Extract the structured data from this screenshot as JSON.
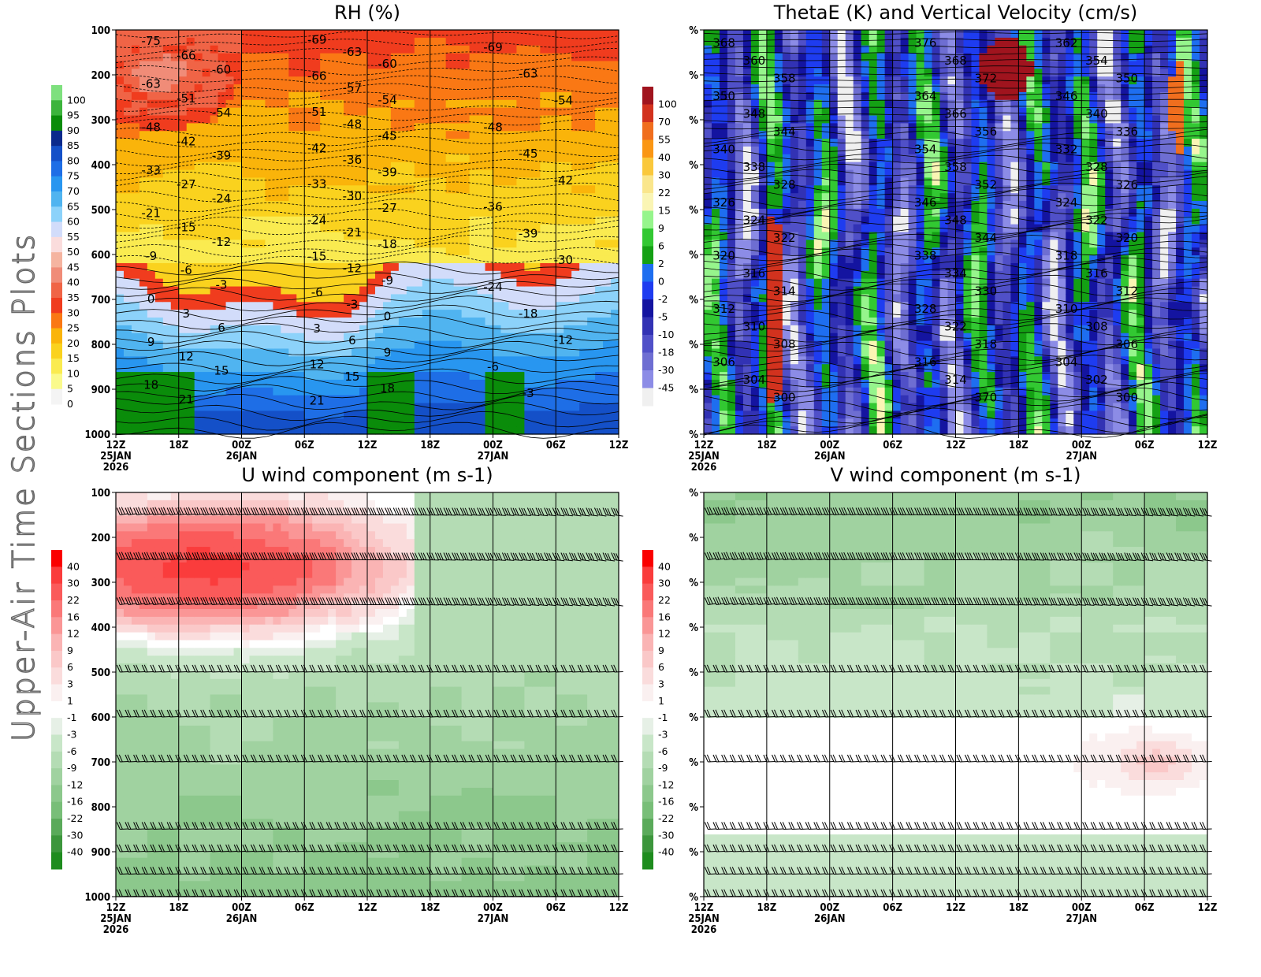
{
  "page": {
    "side_title": "Upper-Air Time Sections Plots"
  },
  "chart_data": [
    {
      "id": "rh",
      "type": "heatmap",
      "title": "RH (%)",
      "xlabel": "",
      "ylabel": "",
      "x_ticks": [
        "12Z",
        "18Z",
        "00Z",
        "06Z",
        "12Z",
        "18Z",
        "00Z",
        "06Z",
        "12Z"
      ],
      "x_dates": [
        "25JAN",
        "",
        "26JAN",
        "",
        "",
        "",
        "27JAN",
        "",
        ""
      ],
      "x_year": "2026",
      "y_ticks": [
        "100",
        "200",
        "300",
        "400",
        "500",
        "600",
        "700",
        "800",
        "900",
        "1000"
      ],
      "ylim": [
        1000,
        100
      ],
      "colorbar": {
        "labels": [
          "100",
          "95",
          "90",
          "85",
          "80",
          "75",
          "70",
          "65",
          "60",
          "55",
          "50",
          "45",
          "40",
          "35",
          "30",
          "25",
          "20",
          "15",
          "10",
          "5",
          "0"
        ],
        "colors": [
          "#7ee07e",
          "#3cb43c",
          "#0a8c0a",
          "#0a2a8c",
          "#1450c8",
          "#1e6ee6",
          "#2896f0",
          "#50b4f0",
          "#8cd2fa",
          "#d2dcfa",
          "#fadcdc",
          "#f5b4a0",
          "#f08c78",
          "#f06446",
          "#f03c1e",
          "#fa7814",
          "#fab40a",
          "#fad21e",
          "#faeb50",
          "#fafa8c",
          "#f4f4f4"
        ]
      },
      "contour_labels": [
        "-75",
        "-66",
        "-60",
        "-63",
        "-51",
        "-54",
        "-48",
        "-42",
        "-39",
        "-33",
        "-27",
        "-24",
        "-21",
        "-15",
        "-12",
        "-9",
        "-6",
        "-3",
        "0",
        "3",
        "6",
        "9",
        "12",
        "15",
        "18",
        "21",
        "-69",
        "-63",
        "-60",
        "-66",
        "-57",
        "-54",
        "-51",
        "-48",
        "-45",
        "-42",
        "-36",
        "-39",
        "-33",
        "-30",
        "-27",
        "-24",
        "-21",
        "-18",
        "-15",
        "-12",
        "-9",
        "-6",
        "-3",
        "0",
        "3",
        "6",
        "9",
        "12",
        "15",
        "18",
        "21",
        "-69",
        "-63",
        "-54",
        "-48",
        "-45",
        "-42",
        "-36",
        "-39",
        "-30",
        "-24",
        "-18",
        "-12",
        "-6",
        "-3"
      ]
    },
    {
      "id": "thetae",
      "type": "heatmap",
      "title": "ThetaE (K) and Vertical Velocity (cm/s)",
      "x_ticks": [
        "12Z",
        "18Z",
        "00Z",
        "06Z",
        "12Z",
        "18Z",
        "00Z",
        "06Z",
        "12Z"
      ],
      "x_dates": [
        "25JAN",
        "",
        "26JAN",
        "",
        "",
        "",
        "27JAN",
        "",
        ""
      ],
      "x_year": "2026",
      "y_ticks": [
        "%",
        "%",
        "%",
        "%",
        "%",
        "%",
        "%",
        "%",
        "%",
        "%"
      ],
      "colorbar": {
        "labels": [
          "100",
          "70",
          "55",
          "40",
          "30",
          "22",
          "15",
          "9",
          "6",
          "2",
          "0",
          "-2",
          "-5",
          "-10",
          "-18",
          "-30",
          "-45"
        ],
        "colors": [
          "#a0141e",
          "#d2321e",
          "#f06e1e",
          "#fa9614",
          "#fac83c",
          "#fae68c",
          "#faf5b4",
          "#96f58c",
          "#32c832",
          "#14a014",
          "#1e6ef0",
          "#1e3cf0",
          "#1414a0",
          "#3232b4",
          "#5050c8",
          "#6e6ed2",
          "#8c8ce6",
          "#f0f0f0"
        ]
      },
      "contour_labels": [
        "368",
        "360",
        "358",
        "350",
        "348",
        "344",
        "340",
        "338",
        "328",
        "326",
        "324",
        "322",
        "320",
        "316",
        "314",
        "312",
        "310",
        "308",
        "306",
        "304",
        "300",
        "376",
        "368",
        "372",
        "364",
        "366",
        "356",
        "354",
        "358",
        "352",
        "346",
        "348",
        "344",
        "338",
        "334",
        "330",
        "328",
        "322",
        "318",
        "316",
        "314",
        "370",
        "362",
        "354",
        "350",
        "346",
        "340",
        "336",
        "332",
        "328",
        "326",
        "324",
        "322",
        "320",
        "318",
        "316",
        "312",
        "310",
        "308",
        "306",
        "304",
        "302",
        "300"
      ]
    },
    {
      "id": "uwind",
      "type": "heatmap",
      "title": "U wind component (m s-1)",
      "x_ticks": [
        "12Z",
        "18Z",
        "00Z",
        "06Z",
        "12Z",
        "18Z",
        "00Z",
        "06Z",
        "12Z"
      ],
      "x_dates": [
        "25JAN",
        "",
        "26JAN",
        "",
        "",
        "",
        "27JAN",
        "",
        ""
      ],
      "x_year": "2026",
      "y_ticks": [
        "100",
        "200",
        "300",
        "400",
        "500",
        "600",
        "700",
        "800",
        "900",
        "1000"
      ],
      "ylim": [
        1000,
        100
      ],
      "colorbar": {
        "labels": [
          "40",
          "30",
          "22",
          "16",
          "12",
          "9",
          "6",
          "3",
          "1",
          "-1",
          "-3",
          "-6",
          "-9",
          "-12",
          "-16",
          "-22",
          "-30",
          "-40"
        ],
        "colors": [
          "#fa0000",
          "#fa3c3c",
          "#fa5a5a",
          "#fa7878",
          "#fa9696",
          "#fab4b4",
          "#fac8c8",
          "#fadcdc",
          "#faf0f0",
          "#ffffff",
          "#e6f0e6",
          "#c8e6c8",
          "#b4dcb4",
          "#a0d2a0",
          "#8cc88c",
          "#78be78",
          "#5aaa5a",
          "#3c963c",
          "#1e8c1e"
        ]
      },
      "contour_labels": []
    },
    {
      "id": "vwind",
      "type": "heatmap",
      "title": "V wind component (m s-1)",
      "x_ticks": [
        "12Z",
        "18Z",
        "00Z",
        "06Z",
        "12Z",
        "18Z",
        "00Z",
        "06Z",
        "12Z"
      ],
      "x_dates": [
        "25JAN",
        "",
        "26JAN",
        "",
        "",
        "",
        "27JAN",
        "",
        ""
      ],
      "x_year": "2026",
      "y_ticks": [
        "%",
        "%",
        "%",
        "%",
        "%",
        "%",
        "%",
        "%",
        "%",
        "%"
      ],
      "colorbar": {
        "labels": [
          "40",
          "30",
          "22",
          "16",
          "12",
          "9",
          "6",
          "3",
          "1",
          "-1",
          "-3",
          "-6",
          "-9",
          "-12",
          "-16",
          "-22",
          "-30",
          "-40"
        ],
        "colors": [
          "#fa0000",
          "#fa3c3c",
          "#fa5a5a",
          "#fa7878",
          "#fa9696",
          "#fab4b4",
          "#fac8c8",
          "#fadcdc",
          "#faf0f0",
          "#ffffff",
          "#e6f0e6",
          "#c8e6c8",
          "#b4dcb4",
          "#a0d2a0",
          "#8cc88c",
          "#78be78",
          "#5aaa5a",
          "#3c963c",
          "#1e8c1e"
        ]
      },
      "contour_labels": []
    }
  ]
}
